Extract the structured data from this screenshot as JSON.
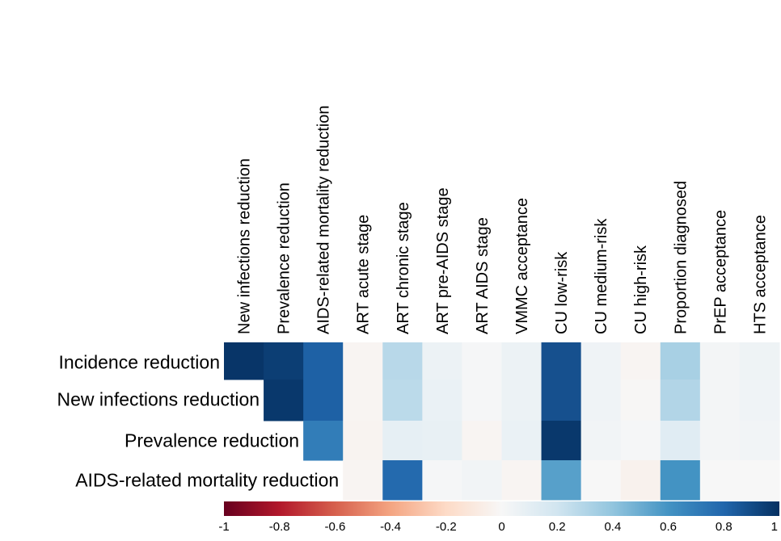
{
  "chart_data": {
    "type": "heatmap",
    "columns": [
      "New infections reduction",
      "Prevalence reduction",
      "AIDS-related mortality reduction",
      "ART acute stage",
      "ART chronic stage",
      "ART pre-AIDS stage",
      "ART AIDS stage",
      "VMMC acceptance",
      "CU low-risk",
      "CU medium-risk",
      "CU high-risk",
      "Proportion diagnosed",
      "PrEP acceptance",
      "HTS acceptance"
    ],
    "rows": [
      "Incidence reduction",
      "New infections reduction",
      "Prevalence reduction",
      "AIDS-related mortality reduction"
    ],
    "values": [
      [
        0.98,
        0.95,
        0.82,
        -0.02,
        0.28,
        0.06,
        0.01,
        0.06,
        0.88,
        0.04,
        -0.02,
        0.33,
        0.02,
        0.05
      ],
      [
        null,
        0.97,
        0.82,
        -0.02,
        0.27,
        0.07,
        0.01,
        0.06,
        0.88,
        0.04,
        -0.01,
        0.3,
        0.02,
        0.04
      ],
      [
        null,
        null,
        0.7,
        -0.03,
        0.09,
        0.08,
        -0.02,
        0.07,
        0.97,
        0.03,
        0.01,
        0.12,
        0.02,
        0.03
      ],
      [
        null,
        null,
        null,
        -0.02,
        0.78,
        0.01,
        0.03,
        -0.02,
        0.55,
        0.0,
        -0.04,
        0.6,
        0.0,
        0.0
      ]
    ],
    "colorbar": {
      "min": -1,
      "max": 1,
      "ticks": [
        -1,
        -0.8,
        -0.6,
        -0.4,
        -0.2,
        0,
        0.2,
        0.4,
        0.6,
        0.8,
        1
      ],
      "tick_labels": [
        "-1",
        "-0.8",
        "-0.6",
        "-0.4",
        "-0.2",
        "0",
        "0.2",
        "0.4",
        "0.6",
        "0.8",
        "1"
      ],
      "color_stops": [
        "#67001f",
        "#b2182b",
        "#d6604d",
        "#f4a582",
        "#fddbc7",
        "#f7f7f7",
        "#d1e5f0",
        "#92c5de",
        "#4393c3",
        "#2166ac",
        "#053061"
      ]
    }
  }
}
